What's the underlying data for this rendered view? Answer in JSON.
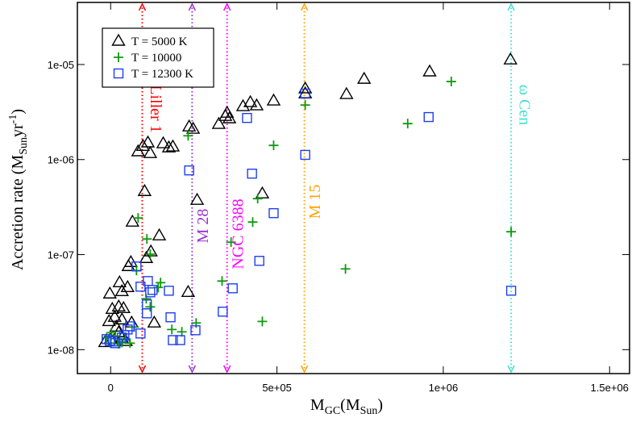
{
  "chart_data": {
    "type": "scatter",
    "xlabel": [
      "M",
      "GC",
      "(M",
      "Sun",
      ")"
    ],
    "ylabel": [
      "Accretion rate (M",
      "Sun",
      "yr",
      "-1",
      ")"
    ],
    "xlim": [
      -100000,
      1560000
    ],
    "ylim": [
      5.6e-09,
      4.5e-05
    ],
    "ylog": true,
    "xticks": [
      0,
      {
        "value": 500000,
        "label": "5e+05"
      },
      {
        "value": 1000000,
        "label": "1e+06"
      },
      {
        "value": 1500000,
        "label": "1.5e+06"
      }
    ],
    "yticks": [
      {
        "value": 1e-08,
        "label": "1e-08"
      },
      {
        "value": 1e-07,
        "label": "1e-07"
      },
      {
        "value": 1e-06,
        "label": "1e-06"
      },
      {
        "value": 1e-05,
        "label": "1e-05"
      }
    ],
    "legend": "upper left",
    "vlines": [
      {
        "label": "Liller 1",
        "x": 95000,
        "color": "#ff0000"
      },
      {
        "label": "M 28",
        "x": 245000,
        "color": "#9b30d0"
      },
      {
        "label": "NGC 6388",
        "x": 350000,
        "color": "#ff00ff"
      },
      {
        "label": "M 15",
        "x": 582500,
        "color": "#ffa500"
      },
      {
        "label": "ω Cen",
        "x": 1204000,
        "color": "#40e0d0"
      }
    ],
    "series": [
      {
        "name": "T = 5000 K",
        "color": "#000000",
        "marker": "triangle",
        "x": [
          -17000,
          0,
          -4900,
          4900,
          -2400,
          12100,
          17000,
          24300,
          26700,
          34000,
          34000,
          38800,
          51000,
          53400,
          60700,
          24300,
          34000,
          46100,
          63100,
          65500,
          82500,
          97100,
          102000,
          112000,
          119000,
          107000,
          121000,
          131000,
          146000,
          158000,
          175000,
          187000,
          236000,
          248000,
          233000,
          260000,
          325000,
          345000,
          350000,
          357000,
          398000,
          420000,
          439000,
          456000,
          490000,
          585000,
          585000,
          709000,
          762000,
          959000,
          1202000
        ],
        "values": [
          1.19e-08,
          1.29e-08,
          1.98e-08,
          2.66e-08,
          3.86e-08,
          2.19e-08,
          1.73e-08,
          2.82e-08,
          5.07e-08,
          4.09e-08,
          2.06e-08,
          2.71e-08,
          4.51e-08,
          7.5e-08,
          8.27e-08,
          1.51e-08,
          1.32e-08,
          1.22e-08,
          1.91e-08,
          2.2e-07,
          1.21e-06,
          1.38e-06,
          4.62e-07,
          1.5e-06,
          1.16e-06,
          9.12e-08,
          1.07e-07,
          1.91e-08,
          1.58e-07,
          1.47e-06,
          1.33e-06,
          1.36e-06,
          2.21e-06,
          2.09e-06,
          4.01e-08,
          3.73e-07,
          2.35e-06,
          2.85e-06,
          3.08e-06,
          2.69e-06,
          3.61e-06,
          3.98e-06,
          3.68e-06,
          4.36e-07,
          4.14e-06,
          5.55e-06,
          4.93e-06,
          4.84e-06,
          7.01e-06,
          8.38e-06,
          1.12e-05
        ]
      },
      {
        "name": "T = 10000",
        "color": "#109a10",
        "marker": "plus",
        "x": [
          -12100,
          2400,
          0,
          14600,
          24300,
          34000,
          43700,
          58300,
          70400,
          77700,
          82500,
          107000,
          109000,
          119000,
          119000,
          143000,
          150000,
          184000,
          214000,
          233000,
          257000,
          335000,
          362000,
          427000,
          442000,
          456000,
          490000,
          585000,
          706000,
          893000,
          1024000,
          1204000
        ],
        "values": [
          1.34e-08,
          1.51e-08,
          1.17e-08,
          1.39e-08,
          1.15e-08,
          1.19e-08,
          1.29e-08,
          1.17e-08,
          1.73e-08,
          6.8e-08,
          2.43e-07,
          3.43e-08,
          1.46e-07,
          2.82e-08,
          1.01e-07,
          4.51e-08,
          5.07e-08,
          1.63e-08,
          1.54e-08,
          1.78e-06,
          1.91e-08,
          5.27e-08,
          1.35e-07,
          2.2e-07,
          3.88e-07,
          1.98e-08,
          1.41e-06,
          3.75e-06,
          7.07e-08,
          2.39e-06,
          6.62e-06,
          1.74e-07
        ]
      },
      {
        "name": "T = 12300 K",
        "color": "#1f3fef",
        "marker": "square",
        "x": [
          -12100,
          -2400,
          7300,
          14600,
          34000,
          41300,
          51000,
          58300,
          77700,
          89800,
          89800,
          109000,
          112000,
          109000,
          119000,
          126000,
          175000,
          180000,
          187000,
          209000,
          236000,
          255000,
          337000,
          367000,
          410000,
          425000,
          447000,
          490000,
          585000,
          585000,
          956000,
          1204000
        ],
        "values": [
          1.29e-08,
          1.24e-08,
          1.22e-08,
          1.17e-08,
          1.34e-08,
          1.42e-08,
          1.63e-08,
          1.76e-08,
          7.5e-08,
          4.6e-08,
          1.48e-08,
          2.99e-08,
          5.27e-08,
          2.41e-08,
          4.01e-08,
          4.25e-08,
          4.17e-08,
          2.19e-08,
          1.26e-08,
          1.26e-08,
          7.69e-07,
          1.6e-08,
          2.51e-08,
          4.42e-08,
          2.74e-06,
          7.11e-07,
          8.6e-08,
          2.73e-07,
          1.12e-06,
          4.93e-06,
          2.8e-06,
          4.17e-08
        ]
      }
    ]
  }
}
